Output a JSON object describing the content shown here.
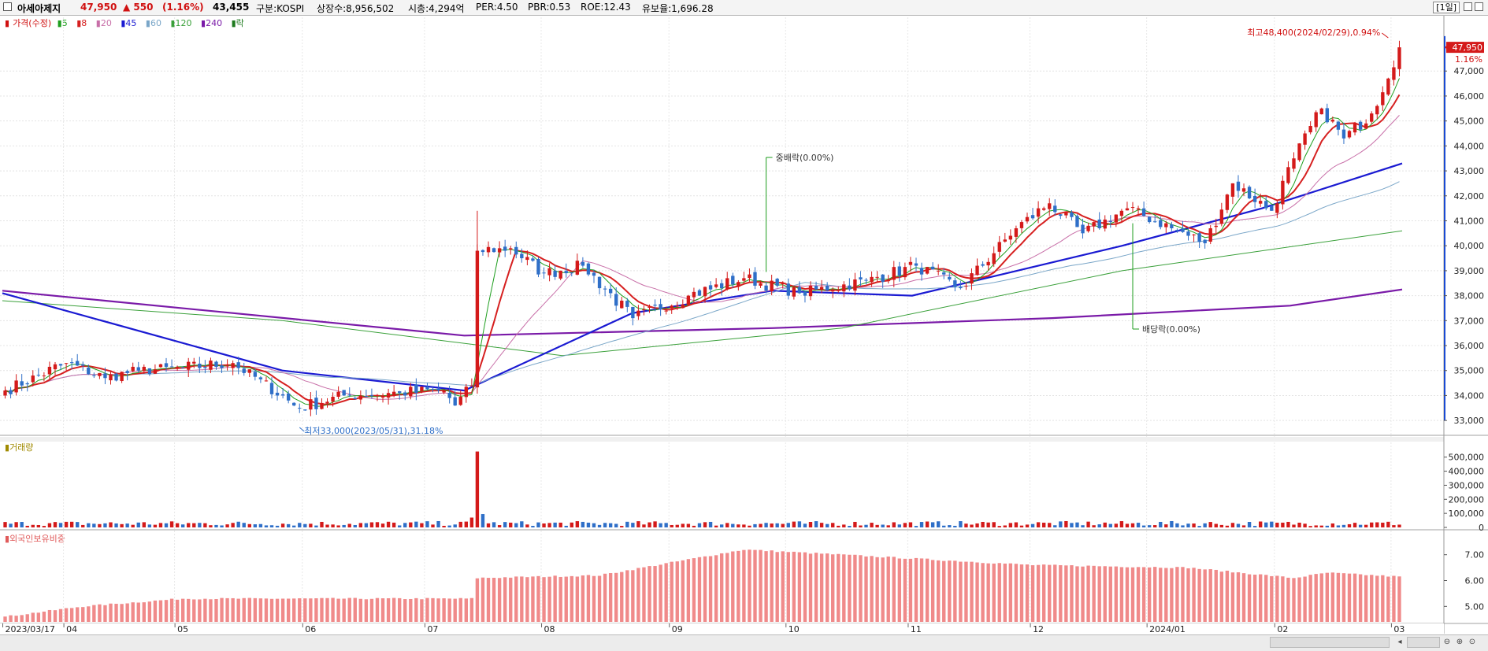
{
  "header": {
    "stock_name": "아세아제지",
    "price": "47,950",
    "change": "▲ 550",
    "change_pct": "(1.16%)",
    "field4": "43,455",
    "market": "구분:KOSPI",
    "listed": "상장수:8,956,502",
    "mktcap": "시총:4,294억",
    "per": "PER:4.50",
    "pbr": "PBR:0.53",
    "roe": "ROE:12.43",
    "float": "유보율:1,696.28",
    "period": "[1일]"
  },
  "price_legend": {
    "title": "가격(수정)",
    "ma": [
      "5",
      "8",
      "20",
      "45",
      "60",
      "120",
      "240"
    ],
    "ma_colors": [
      "#1e9e1e",
      "#d62020",
      "#c86fa8",
      "#1a1ad2",
      "#7aa6c8",
      "#3aa03a",
      "#7a1aa8"
    ],
    "event": "락"
  },
  "volume_legend": "거래량",
  "foreign_legend": "외국인보유비중",
  "annotations": {
    "high": "최고48,400(2024/02/29),0.94%",
    "low": "최저33,000(2023/05/31),31.18%",
    "split": "중배락(0.00%)",
    "dividend": "배당락(0.00%)",
    "current_price_tag": "47,950",
    "current_pct_tag": "1.16%"
  },
  "chart_data": [
    {
      "type": "candlestick",
      "title": "가격(수정)",
      "x_labels": [
        "2023/03/17",
        "04",
        "05",
        "06",
        "07",
        "08",
        "09",
        "10",
        "11",
        "12",
        "2024/01",
        "02",
        "03"
      ],
      "y_ticks": [
        "33,000",
        "34,000",
        "35,000",
        "36,000",
        "37,000",
        "38,000",
        "39,000",
        "40,000",
        "41,000",
        "42,000",
        "43,000",
        "44,000",
        "45,000",
        "46,000",
        "47,000"
      ],
      "ylim": [
        32500,
        48900
      ],
      "keypoints_close": [
        {
          "date": "2023-03-17",
          "close": 34200
        },
        {
          "date": "2023-04-03",
          "close": 35300
        },
        {
          "date": "2023-04-12",
          "close": 34700
        },
        {
          "date": "2023-04-20",
          "close": 35000
        },
        {
          "date": "2023-05-02",
          "close": 35100
        },
        {
          "date": "2023-05-15",
          "close": 35300
        },
        {
          "date": "2023-05-31",
          "close": 33500
        },
        {
          "date": "2023-06-12",
          "close": 34000
        },
        {
          "date": "2023-06-26",
          "close": 34100
        },
        {
          "date": "2023-07-06",
          "close": 34200
        },
        {
          "date": "2023-07-10",
          "close": 33600
        },
        {
          "date": "2023-07-13",
          "close": 34400
        },
        {
          "date": "2023-07-14",
          "close": 39800
        },
        {
          "date": "2023-07-24",
          "close": 39900
        },
        {
          "date": "2023-08-01",
          "close": 38900
        },
        {
          "date": "2023-08-10",
          "close": 39200
        },
        {
          "date": "2023-08-23",
          "close": 37100
        },
        {
          "date": "2023-09-06",
          "close": 38000
        },
        {
          "date": "2023-09-20",
          "close": 38700
        },
        {
          "date": "2023-10-04",
          "close": 38100
        },
        {
          "date": "2023-10-20",
          "close": 38600
        },
        {
          "date": "2023-11-02",
          "close": 39200
        },
        {
          "date": "2023-11-14",
          "close": 38300
        },
        {
          "date": "2023-11-28",
          "close": 40700
        },
        {
          "date": "2023-12-06",
          "close": 41700
        },
        {
          "date": "2023-12-14",
          "close": 40500
        },
        {
          "date": "2023-12-26",
          "close": 41500
        },
        {
          "date": "2024-01-08",
          "close": 40600
        },
        {
          "date": "2024-01-15",
          "close": 40100
        },
        {
          "date": "2024-01-22",
          "close": 42500
        },
        {
          "date": "2024-01-31",
          "close": 41400
        },
        {
          "date": "2024-02-06",
          "close": 43500
        },
        {
          "date": "2024-02-13",
          "close": 45500
        },
        {
          "date": "2024-02-19",
          "close": 44300
        },
        {
          "date": "2024-02-26",
          "close": 45300
        },
        {
          "date": "2024-03-04",
          "close": 47950
        }
      ],
      "ma_series": [
        {
          "name": "240",
          "values": [
            [
              0,
              38200
            ],
            [
              0.33,
              36400
            ],
            [
              0.55,
              36700
            ],
            [
              0.75,
              37100
            ],
            [
              0.92,
              37600
            ],
            [
              1,
              38250
            ]
          ]
        },
        {
          "name": "120",
          "values": [
            [
              0,
              37800
            ],
            [
              0.2,
              37000
            ],
            [
              0.4,
              35600
            ],
            [
              0.6,
              36700
            ],
            [
              0.8,
              39000
            ],
            [
              1,
              40600
            ]
          ]
        },
        {
          "name": "45",
          "values": [
            [
              0,
              38100
            ],
            [
              0.2,
              35000
            ],
            [
              0.33,
              34200
            ],
            [
              0.45,
              37300
            ],
            [
              0.55,
              38200
            ],
            [
              0.65,
              38000
            ],
            [
              0.8,
              40000
            ],
            [
              0.9,
              41500
            ],
            [
              1,
              43300
            ]
          ]
        }
      ]
    },
    {
      "type": "bar",
      "title": "거래량",
      "y_ticks": [
        "0",
        "100,000",
        "200,000",
        "300,000",
        "400,000",
        "500,000"
      ],
      "ylim": [
        0,
        560000
      ],
      "spike": {
        "date": "2023-07-14",
        "value": 540000
      },
      "typical_range": [
        10000,
        45000
      ]
    },
    {
      "type": "bar",
      "title": "외국인보유비중",
      "y_ticks": [
        "5.00",
        "6.00",
        "7.00"
      ],
      "ylim": [
        4.4,
        7.6
      ],
      "keypoints": [
        {
          "date": "2023-03-17",
          "value": 4.6
        },
        {
          "date": "2023-04-06",
          "value": 5.0
        },
        {
          "date": "2023-05-02",
          "value": 5.3
        },
        {
          "date": "2023-07-13",
          "value": 5.3
        },
        {
          "date": "2023-07-14",
          "value": 6.1
        },
        {
          "date": "2023-08-15",
          "value": 6.2
        },
        {
          "date": "2023-09-20",
          "value": 7.2
        },
        {
          "date": "2023-10-20",
          "value": 6.95
        },
        {
          "date": "2023-12-01",
          "value": 6.6
        },
        {
          "date": "2024-01-10",
          "value": 6.5
        },
        {
          "date": "2024-02-06",
          "value": 6.1
        },
        {
          "date": "2024-02-14",
          "value": 6.3
        },
        {
          "date": "2024-03-04",
          "value": 6.15
        }
      ]
    }
  ]
}
